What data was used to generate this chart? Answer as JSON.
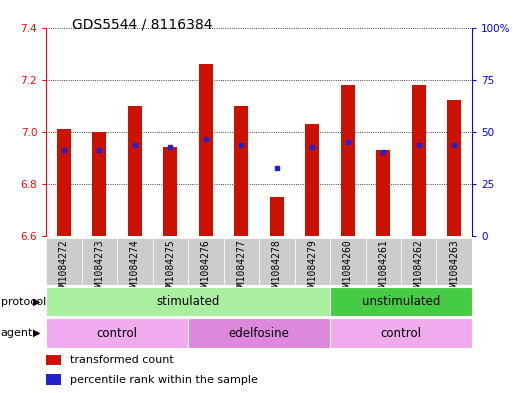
{
  "title": "GDS5544 / 8116384",
  "samples": [
    "GSM1084272",
    "GSM1084273",
    "GSM1084274",
    "GSM1084275",
    "GSM1084276",
    "GSM1084277",
    "GSM1084278",
    "GSM1084279",
    "GSM1084260",
    "GSM1084261",
    "GSM1084262",
    "GSM1084263"
  ],
  "bar_values": [
    7.01,
    7.0,
    7.1,
    6.94,
    7.26,
    7.1,
    6.75,
    7.03,
    7.18,
    6.93,
    7.18,
    7.12
  ],
  "percentile_values": [
    6.93,
    6.93,
    6.95,
    6.94,
    6.97,
    6.95,
    6.86,
    6.94,
    6.96,
    6.92,
    6.95,
    6.95
  ],
  "bar_color": "#CC1100",
  "dot_color": "#2222CC",
  "ymin": 6.6,
  "ymax": 7.4,
  "yticks": [
    6.6,
    6.8,
    7.0,
    7.2,
    7.4
  ],
  "right_yticks": [
    0,
    25,
    50,
    75,
    100
  ],
  "right_ylabels": [
    "0",
    "25",
    "50",
    "75",
    "100%"
  ],
  "protocol_groups": [
    {
      "label": "stimulated",
      "start": 0,
      "end": 7,
      "color": "#AAEEA0"
    },
    {
      "label": "unstimulated",
      "start": 8,
      "end": 11,
      "color": "#44CC44"
    }
  ],
  "agent_groups": [
    {
      "label": "control",
      "start": 0,
      "end": 3,
      "color": "#F0AAEE"
    },
    {
      "label": "edelfosine",
      "start": 4,
      "end": 7,
      "color": "#DD88DD"
    },
    {
      "label": "control",
      "start": 8,
      "end": 11,
      "color": "#F0AAEE"
    }
  ],
  "legend_items": [
    {
      "label": "transformed count",
      "color": "#CC1100"
    },
    {
      "label": "percentile rank within the sample",
      "color": "#2222CC"
    }
  ],
  "title_fontsize": 10,
  "tick_fontsize": 7,
  "label_fontsize": 8.5,
  "bar_width": 0.4
}
